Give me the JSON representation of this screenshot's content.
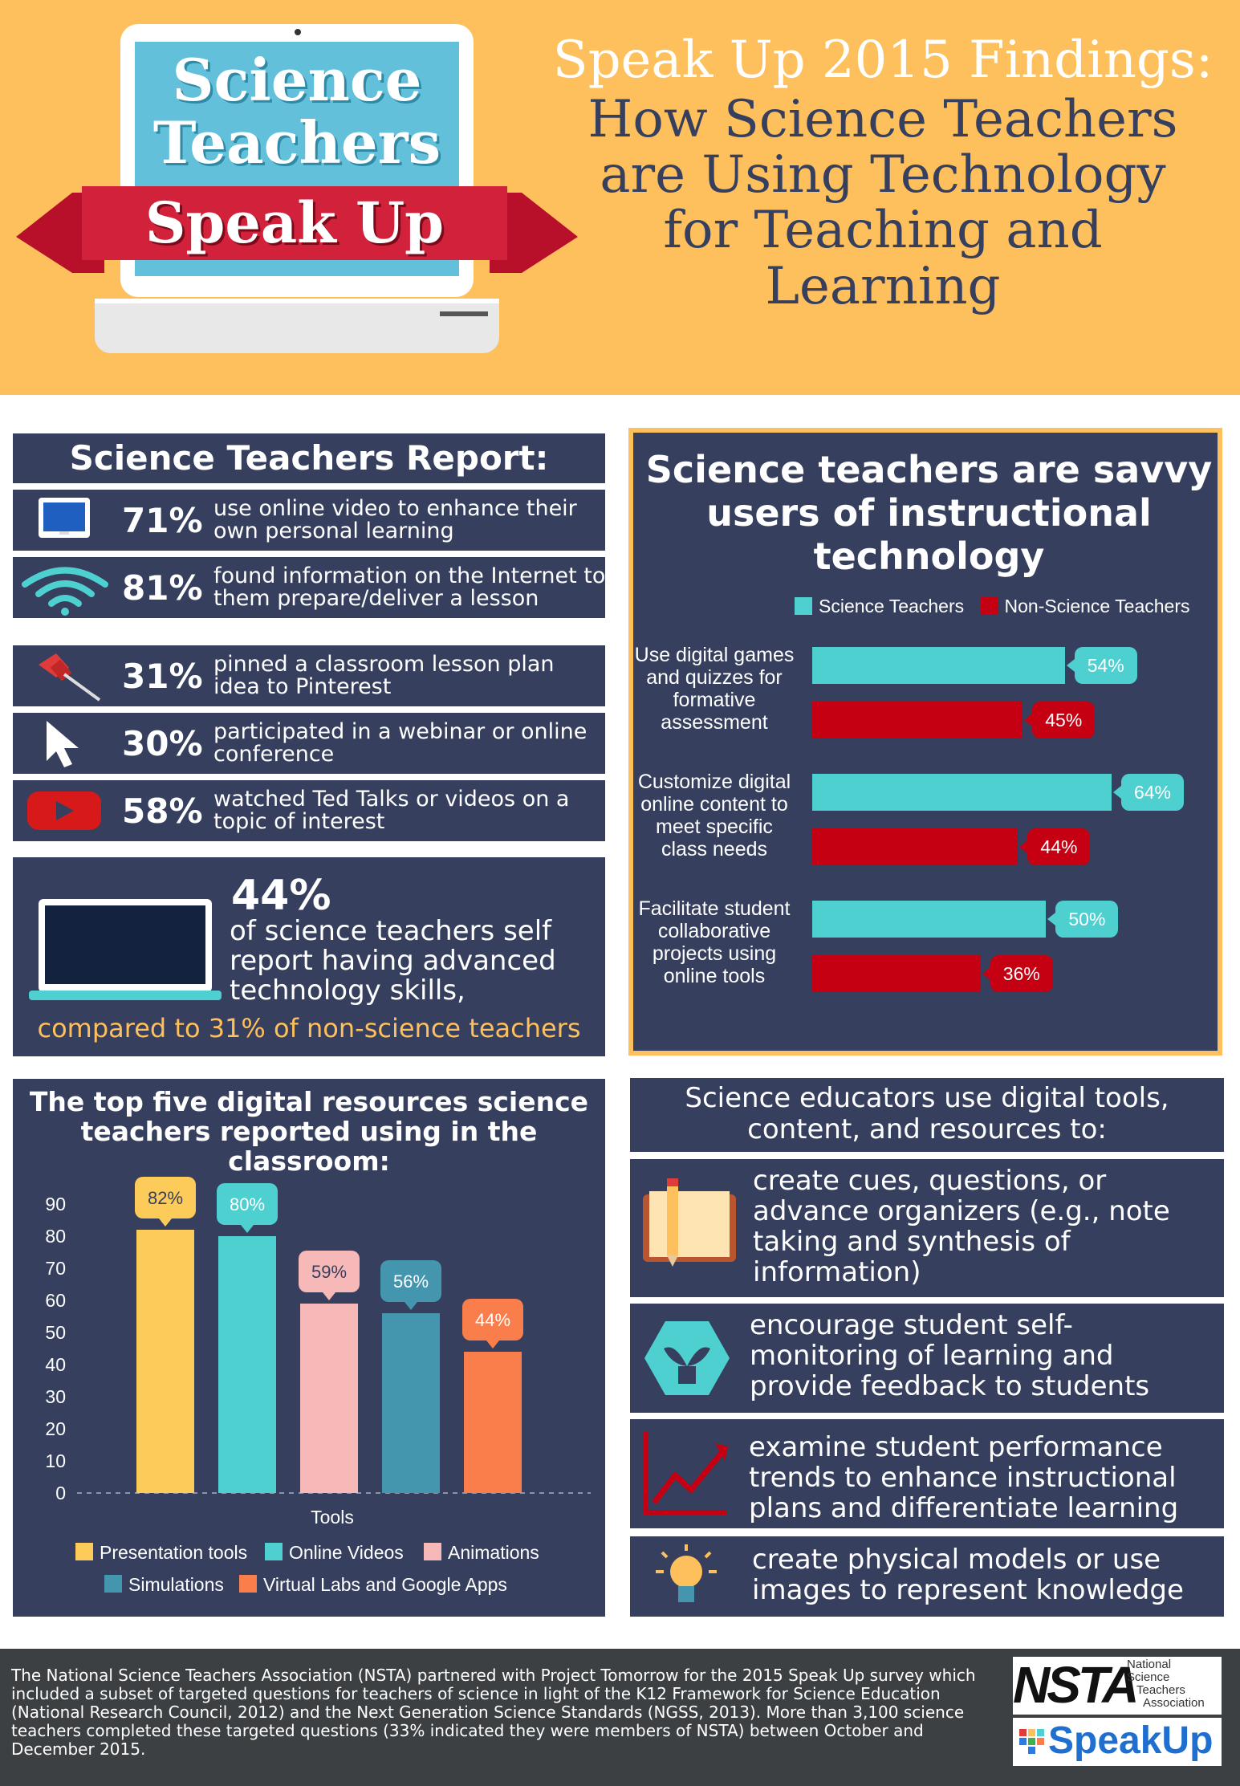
{
  "header": {
    "badge_line1": "Science",
    "badge_line2": "Teachers",
    "ribbon": "Speak Up",
    "title_line1": "Speak Up 2015 Findings:",
    "title_line2": "How Science Teachers",
    "title_line3": "are Using Technology",
    "title_line4": "for Teaching and",
    "title_line5": "Learning"
  },
  "report": {
    "heading": "Science Teachers Report:",
    "rows": [
      {
        "pct": "71%",
        "text": "use online video to enhance their own personal learning",
        "icon": "monitor-icon"
      },
      {
        "pct": "81%",
        "text": "found information on the Internet to them prepare/deliver a lesson",
        "icon": "wifi-icon"
      },
      {
        "pct": "31%",
        "text": "pinned a classroom lesson plan idea to Pinterest",
        "icon": "pushpin-icon"
      },
      {
        "pct": "30%",
        "text": "participated in a webinar or online conference",
        "icon": "cursor-icon"
      },
      {
        "pct": "58%",
        "text": "watched Ted Talks or videos on a topic of interest",
        "icon": "play-icon"
      }
    ],
    "skills_pct": "44%",
    "skills_text": "of science teachers self report having advanced technology skills,",
    "skills_compare": "compared to 31% of non-science teachers"
  },
  "savvy": {
    "heading": "Science teachers are savvy users of instructional technology",
    "legend_science": "Science Teachers",
    "legend_non": "Non-Science Teachers",
    "color_science": "#4fd0d0",
    "color_non": "#c40012"
  },
  "top5": {
    "heading": "The top five digital resources science teachers reported using in the classroom:"
  },
  "chart_data": [
    {
      "type": "bar",
      "orientation": "horizontal",
      "title": "Science teachers are savvy users of instructional technology",
      "categories": [
        "Use digital games and quizzes for formative assessment",
        "Customize digital online content to meet specific class needs",
        "Facilitate student collaborative projects using online tools"
      ],
      "series": [
        {
          "name": "Science Teachers",
          "values": [
            54,
            64,
            50
          ],
          "labels": [
            "54%",
            "64%",
            "50%"
          ]
        },
        {
          "name": "Non-Science Teachers",
          "values": [
            45,
            44,
            36
          ],
          "labels": [
            "45%",
            "44%",
            "36%"
          ]
        }
      ],
      "xlim": [
        0,
        64
      ],
      "legend": "top"
    },
    {
      "type": "bar",
      "title": "The top five digital resources science teachers reported using in the classroom:",
      "xlabel": "Tools",
      "ylabel": "",
      "ylim": [
        0,
        90
      ],
      "yticks": [
        "0",
        "10",
        "20",
        "30",
        "40",
        "50",
        "60",
        "70",
        "80",
        "90"
      ],
      "categories": [
        "Presentation tools",
        "Online Videos",
        "Animations",
        "Simulations",
        "Virtual Labs and Google Apps"
      ],
      "values": [
        82,
        80,
        59,
        56,
        44
      ],
      "labels": [
        "82%",
        "80%",
        "59%",
        "56%",
        "44%"
      ],
      "colors": [
        "#fccb5a",
        "#4fd0d0",
        "#f7b8b8",
        "#4496ae",
        "#f97e4c"
      ],
      "legend": "bottom"
    }
  ],
  "educators": {
    "heading": "Science educators use digital tools, content, and resources to:",
    "items": [
      {
        "text": "create cues, questions, or advance organizers (e.g., note taking and synthesis of information)",
        "icon": "book-icon"
      },
      {
        "text": "encourage student self-monitoring of learning and provide feedback to students",
        "icon": "plant-icon"
      },
      {
        "text": "examine student performance trends to enhance instructional plans and differentiate learning",
        "icon": "trend-chart-icon"
      },
      {
        "text": "create physical models or use images to represent knowledge",
        "icon": "lightbulb-icon"
      }
    ]
  },
  "footer": {
    "text": "The National Science Teachers Association (NSTA) partnered with Project Tomorrow for the 2015 Speak Up survey which included a subset of targeted questions for teachers of science in light of the K12 Framework for Science Education (National Research Council, 2012) and the Next Generation Science Standards (NGSS, 2013). More than 3,100 science teachers completed these targeted questions (33% indicated they were members of NSTA) between October and December 2015.",
    "nsta_logo": "NSTA",
    "nsta_sub1": "National",
    "nsta_sub2": "Science",
    "nsta_sub3": "Teachers",
    "nsta_sub4": "Association",
    "speakup_logo": "SpeakUp"
  }
}
